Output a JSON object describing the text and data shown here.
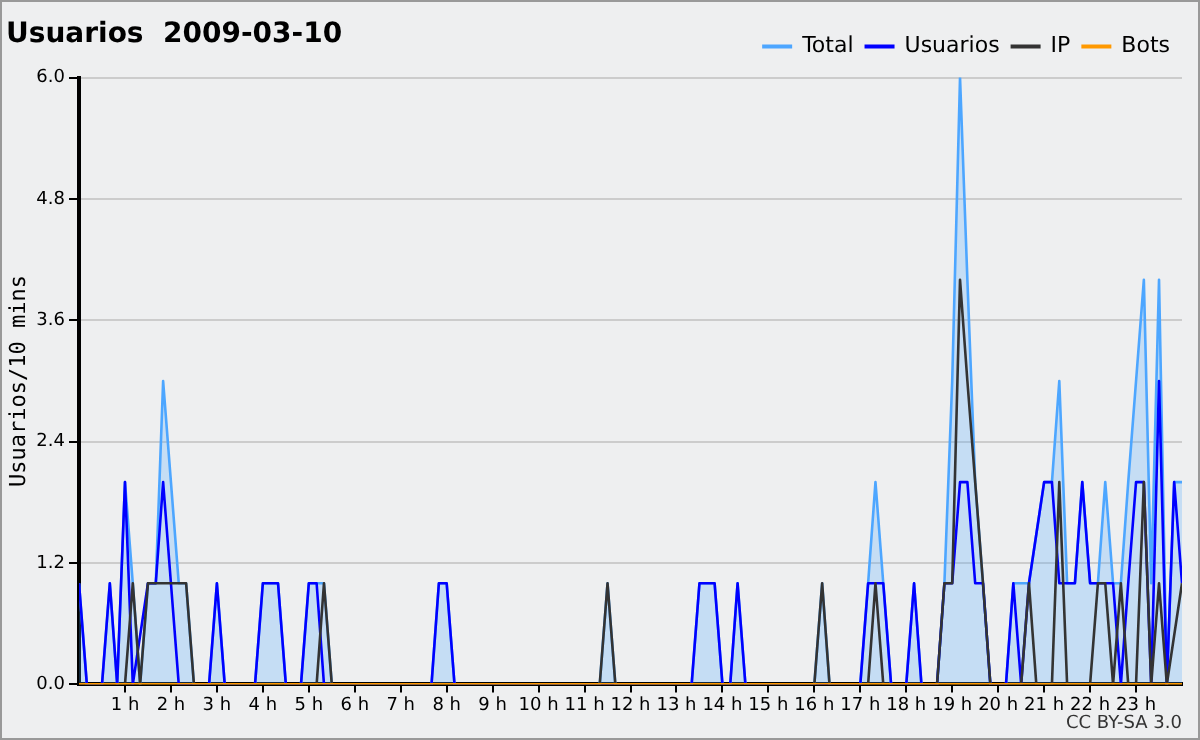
{
  "chart_data": {
    "type": "line",
    "title": "Usuarios  2009-03-10",
    "ylabel": "Usuarios/10 mins",
    "annotations": [
      "CC BY-SA 3.0"
    ],
    "xlim": [
      0,
      24
    ],
    "xticks": [
      {
        "value": 1,
        "label": "1 h"
      },
      {
        "value": 2,
        "label": "2 h"
      },
      {
        "value": 3,
        "label": "3 h"
      },
      {
        "value": 4,
        "label": "4 h"
      },
      {
        "value": 5,
        "label": "5 h"
      },
      {
        "value": 6,
        "label": "6 h"
      },
      {
        "value": 7,
        "label": "7 h"
      },
      {
        "value": 8,
        "label": "8 h"
      },
      {
        "value": 9,
        "label": "9 h"
      },
      {
        "value": 10,
        "label": "10 h"
      },
      {
        "value": 11,
        "label": "11 h"
      },
      {
        "value": 12,
        "label": "12 h"
      },
      {
        "value": 13,
        "label": "13 h"
      },
      {
        "value": 14,
        "label": "14 h"
      },
      {
        "value": 15,
        "label": "15 h"
      },
      {
        "value": 16,
        "label": "16 h"
      },
      {
        "value": 17,
        "label": "17 h"
      },
      {
        "value": 18,
        "label": "18 h"
      },
      {
        "value": 19,
        "label": "19 h"
      },
      {
        "value": 20,
        "label": "20 h"
      },
      {
        "value": 21,
        "label": "21 h"
      },
      {
        "value": 22,
        "label": "22 h"
      },
      {
        "value": 23,
        "label": "23 h"
      }
    ],
    "ylim": [
      0,
      6
    ],
    "yticks": [
      {
        "value": 0,
        "label": "0.0"
      },
      {
        "value": 1.2,
        "label": "1.2"
      },
      {
        "value": 2.4,
        "label": "2.4"
      },
      {
        "value": 3.6,
        "label": "3.6"
      },
      {
        "value": 4.8,
        "label": "4.8"
      },
      {
        "value": 6,
        "label": "6.0"
      }
    ],
    "grid": "y",
    "legend": "top right",
    "marker": "none",
    "line_style": "solid",
    "series": [
      {
        "name": "Total",
        "type": "area",
        "color": "#4da6ff",
        "x": [
          0,
          0.17,
          0.5,
          0.67,
          0.83,
          1.0,
          1.17,
          1.33,
          1.5,
          1.67,
          1.83,
          2.0,
          2.17,
          2.33,
          2.5,
          2.83,
          3.0,
          3.17,
          3.83,
          4.0,
          4.33,
          4.5,
          4.83,
          5.0,
          5.17,
          5.33,
          5.5,
          7.67,
          7.83,
          8.0,
          8.17,
          11.33,
          11.5,
          11.67,
          13.33,
          13.5,
          13.83,
          14.0,
          14.17,
          14.33,
          14.5,
          16.0,
          16.17,
          16.33,
          17.0,
          17.17,
          17.33,
          17.5,
          17.67,
          18.0,
          18.17,
          18.33,
          18.67,
          18.83,
          19.0,
          19.17,
          19.33,
          19.5,
          19.67,
          19.83,
          20.17,
          20.33,
          20.5,
          20.67,
          21.0,
          21.17,
          21.33,
          21.5,
          21.67,
          21.83,
          22.0,
          22.17,
          22.33,
          22.5,
          22.67,
          22.83,
          23.0,
          23.17,
          23.33,
          23.5,
          23.67,
          23.83,
          24.0
        ],
        "values": [
          1,
          0,
          0,
          1,
          0,
          2,
          1,
          0,
          1,
          1,
          3,
          2,
          1,
          1,
          0,
          0,
          1,
          0,
          0,
          1,
          1,
          0,
          0,
          1,
          1,
          1,
          0,
          0,
          1,
          1,
          0,
          0,
          1,
          0,
          0,
          1,
          1,
          0,
          0,
          1,
          0,
          0,
          1,
          0,
          0,
          1,
          2,
          1,
          0,
          0,
          1,
          0,
          0,
          1,
          3,
          6,
          4,
          2,
          1,
          0,
          0,
          1,
          1,
          1,
          2,
          2,
          3,
          1,
          1,
          2,
          1,
          1,
          2,
          1,
          1,
          2,
          3,
          4,
          1,
          4,
          0,
          2,
          2
        ]
      },
      {
        "name": "Usuarios",
        "type": "line",
        "color": "#0000ff",
        "x": [
          0,
          0.17,
          0.5,
          0.67,
          0.83,
          1.0,
          1.17,
          1.5,
          1.67,
          1.83,
          2.0,
          2.17,
          2.83,
          3.0,
          3.17,
          3.83,
          4.0,
          4.33,
          4.5,
          4.83,
          5.0,
          5.17,
          5.33,
          7.67,
          7.83,
          8.0,
          8.17,
          13.33,
          13.5,
          13.83,
          14.0,
          14.17,
          14.33,
          14.5,
          17.0,
          17.17,
          17.5,
          17.67,
          18.0,
          18.17,
          18.33,
          18.67,
          18.83,
          19.0,
          19.17,
          19.33,
          19.5,
          19.67,
          19.83,
          20.17,
          20.33,
          20.5,
          20.67,
          21.0,
          21.17,
          21.33,
          21.67,
          21.83,
          22.0,
          22.5,
          22.67,
          22.83,
          23.0,
          23.17,
          23.33,
          23.5,
          23.67,
          23.83,
          24.0
        ],
        "values": [
          1,
          0,
          0,
          1,
          0,
          2,
          0,
          1,
          1,
          2,
          1,
          0,
          0,
          1,
          0,
          0,
          1,
          1,
          0,
          0,
          1,
          1,
          0,
          0,
          1,
          1,
          0,
          0,
          1,
          1,
          0,
          0,
          1,
          0,
          0,
          1,
          1,
          0,
          0,
          1,
          0,
          0,
          1,
          1,
          2,
          2,
          1,
          1,
          0,
          0,
          1,
          0,
          1,
          2,
          2,
          1,
          1,
          2,
          1,
          1,
          0,
          1,
          2,
          2,
          0,
          3,
          0,
          2,
          1
        ]
      },
      {
        "name": "IP",
        "type": "line",
        "color": "#333333",
        "x": [
          0,
          1.0,
          1.17,
          1.33,
          1.5,
          2.33,
          2.5,
          5.17,
          5.33,
          5.5,
          11.33,
          11.5,
          11.67,
          16.0,
          16.17,
          16.33,
          17.17,
          17.33,
          17.5,
          18.67,
          18.83,
          19.0,
          19.17,
          19.33,
          19.5,
          19.67,
          19.83,
          20.5,
          20.67,
          20.83,
          21.17,
          21.33,
          21.5,
          22.0,
          22.17,
          22.33,
          22.5,
          22.67,
          22.83,
          23.0,
          23.17,
          23.33,
          23.5,
          23.67,
          24.0
        ],
        "values": [
          0,
          0,
          1,
          0,
          1,
          1,
          0,
          0,
          1,
          0,
          0,
          1,
          0,
          0,
          1,
          0,
          0,
          1,
          0,
          0,
          1,
          1,
          4,
          3,
          2,
          1,
          0,
          0,
          1,
          0,
          0,
          2,
          0,
          0,
          1,
          1,
          0,
          1,
          0,
          0,
          2,
          0,
          1,
          0,
          1
        ]
      },
      {
        "name": "Bots",
        "type": "line",
        "color": "#ff9900",
        "x": [
          0,
          24
        ],
        "values": [
          0,
          0
        ]
      }
    ]
  }
}
